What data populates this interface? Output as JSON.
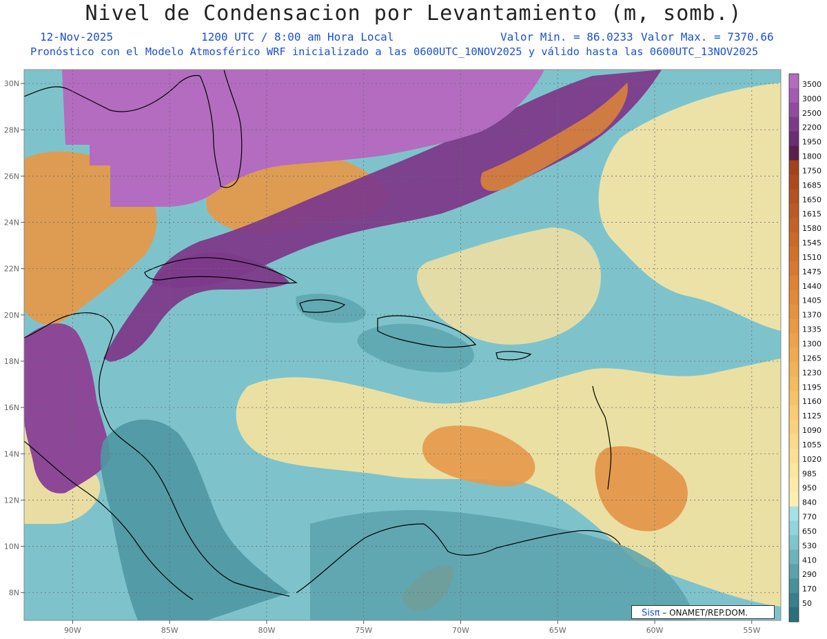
{
  "title": "Nivel de Condensacion por Levantamiento (m, somb.)",
  "header": {
    "date": "12-Nov-2025",
    "time": "1200 UTC / 8:00 am Hora Local",
    "vmin": "Valor Min. = 86.0233",
    "vmax": "Valor Max. = 7370.66",
    "model_line": "Pronóstico con el Modelo Atmosférico WRF inicializado a las 0600UTC_10NOV2025 y válido hasta las  0600UTC_13NOV2025"
  },
  "map": {
    "lon_range": [
      -92.5,
      -53.5
    ],
    "lat_range": [
      6.8,
      30.6
    ],
    "lon_ticks": [
      {
        "value": -90,
        "label": "90W"
      },
      {
        "value": -85,
        "label": "85W"
      },
      {
        "value": -80,
        "label": "80W"
      },
      {
        "value": -75,
        "label": "75W"
      },
      {
        "value": -70,
        "label": "70W"
      },
      {
        "value": -65,
        "label": "65W"
      },
      {
        "value": -60,
        "label": "60W"
      },
      {
        "value": -55,
        "label": "55W"
      }
    ],
    "lat_ticks": [
      {
        "value": 8,
        "label": "8N"
      },
      {
        "value": 10,
        "label": "10N"
      },
      {
        "value": 12,
        "label": "12N"
      },
      {
        "value": 14,
        "label": "14N"
      },
      {
        "value": 16,
        "label": "16N"
      },
      {
        "value": 18,
        "label": "18N"
      },
      {
        "value": 20,
        "label": "20N"
      },
      {
        "value": 22,
        "label": "22N"
      },
      {
        "value": 24,
        "label": "24N"
      },
      {
        "value": 26,
        "label": "26N"
      },
      {
        "value": 28,
        "label": "28N"
      },
      {
        "value": 30,
        "label": "30N"
      }
    ],
    "ocean_color": "#7ec3cc"
  },
  "colorbar": {
    "levels": [
      {
        "label": "3500",
        "color": "#b36cbf"
      },
      {
        "label": "3000",
        "color": "#a35bb2"
      },
      {
        "label": "2500",
        "color": "#904a9e"
      },
      {
        "label": "2200",
        "color": "#7d3a8a"
      },
      {
        "label": "1950",
        "color": "#6a2c74"
      },
      {
        "label": "1800",
        "color": "#5a1e4a"
      },
      {
        "label": "1750",
        "color": "#a3421a"
      },
      {
        "label": "1685",
        "color": "#ab4a1d"
      },
      {
        "label": "1650",
        "color": "#b45220"
      },
      {
        "label": "1615",
        "color": "#bc5a23"
      },
      {
        "label": "1580",
        "color": "#c36226"
      },
      {
        "label": "1545",
        "color": "#ca6a29"
      },
      {
        "label": "1510",
        "color": "#d0722c"
      },
      {
        "label": "1475",
        "color": "#d67a30"
      },
      {
        "label": "1440",
        "color": "#dc8334"
      },
      {
        "label": "1405",
        "color": "#e18b38"
      },
      {
        "label": "1370",
        "color": "#e5933d"
      },
      {
        "label": "1335",
        "color": "#e99b43"
      },
      {
        "label": "1300",
        "color": "#eda349"
      },
      {
        "label": "1265",
        "color": "#f0ab50"
      },
      {
        "label": "1230",
        "color": "#f2b358"
      },
      {
        "label": "1195",
        "color": "#f4bb61"
      },
      {
        "label": "1160",
        "color": "#f6c36a"
      },
      {
        "label": "1125",
        "color": "#f8cb74"
      },
      {
        "label": "1090",
        "color": "#f9d27e"
      },
      {
        "label": "1055",
        "color": "#fad988"
      },
      {
        "label": "1020",
        "color": "#fbdf92"
      },
      {
        "label": "985",
        "color": "#fce59c"
      },
      {
        "label": "950",
        "color": "#fdeaa6"
      },
      {
        "label": "840",
        "color": "#fdefb0"
      },
      {
        "label": "770",
        "color": "#a7e1e8"
      },
      {
        "label": "650",
        "color": "#94d3db"
      },
      {
        "label": "530",
        "color": "#80c4cd"
      },
      {
        "label": "410",
        "color": "#6cb3bd"
      },
      {
        "label": "290",
        "color": "#5aa2ad"
      },
      {
        "label": "170",
        "color": "#48919c"
      },
      {
        "label": "50",
        "color": "#367f8b"
      },
      {
        "label": "",
        "color": "#2a6f7b"
      }
    ]
  },
  "credit": {
    "logo": "Sisπ",
    "text": " – ONAMET/REP.DOM."
  }
}
